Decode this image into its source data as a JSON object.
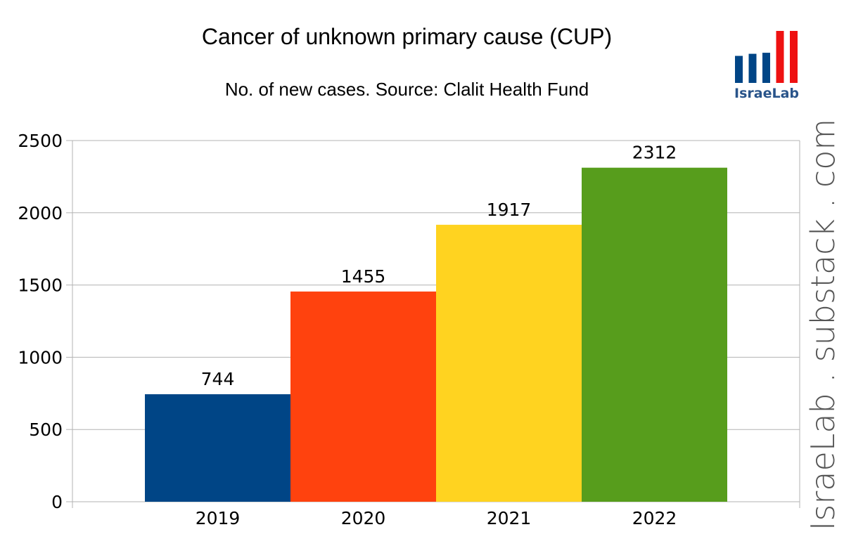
{
  "chart_data": {
    "type": "bar",
    "title": "Cancer of unknown primary cause (CUP)",
    "subtitle": "No. of new cases.  Source: Clalit Health Fund",
    "categories": [
      "2019",
      "2020",
      "2021",
      "2022"
    ],
    "values": [
      744,
      1455,
      1917,
      2312
    ],
    "data_labels": [
      "744",
      "1455",
      "1917",
      "2312"
    ],
    "colors": [
      "#004586",
      "#ff420e",
      "#ffd320",
      "#579d1c"
    ],
    "ylim": [
      0,
      2500
    ],
    "yticks": [
      0,
      500,
      1000,
      1500,
      2000,
      2500
    ],
    "ytick_labels": [
      "0",
      "500",
      "1000",
      "1500",
      "2000",
      "2500"
    ],
    "xlabel": "",
    "ylabel": "",
    "grid": true,
    "legend": "none"
  },
  "logo": {
    "text": "IsraeLab",
    "bar_colors": [
      "#004586",
      "#004586",
      "#004586",
      "#ee1111",
      "#ee1111"
    ],
    "bar_levels": [
      0.52,
      0.56,
      0.58,
      1.0,
      1.0
    ]
  },
  "watermark": "IsraeLab . substack . com"
}
